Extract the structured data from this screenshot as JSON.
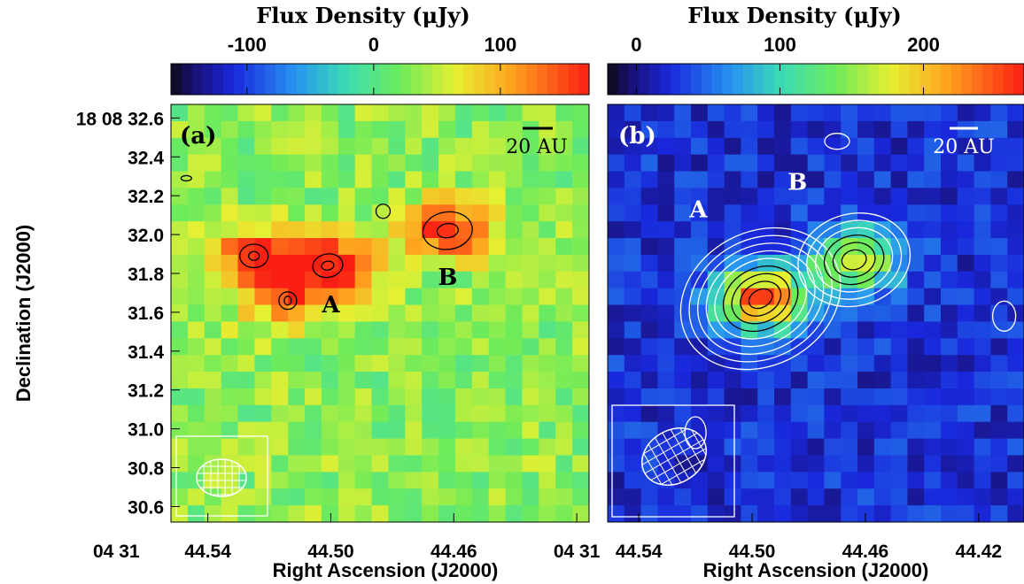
{
  "chart_data": [
    {
      "type": "heatmap",
      "panel_label": "(a)",
      "colorbar_title": "Flux Density (μJy)",
      "colorbar_range": [
        -160,
        170
      ],
      "colorbar_ticks": [
        {
          "value": -100,
          "label": "-100"
        },
        {
          "value": 0,
          "label": "0"
        },
        {
          "value": 100,
          "label": "100"
        }
      ],
      "xlabel": "Right Ascension (J2000)",
      "ylabel": "Declination (J2000)",
      "xlim": [
        "44.54",
        "44.42"
      ],
      "ylim": [
        30.52,
        32.67
      ],
      "x_ticks": [
        {
          "value": 44.54,
          "label": "44.54"
        },
        {
          "value": 44.5,
          "label": "44.50"
        },
        {
          "value": 44.46,
          "label": "44.46"
        },
        {
          "value": 44.42,
          "label": "04 31"
        }
      ],
      "x_prefix_label": "04 31",
      "y_ticks": [
        {
          "value": 32.6,
          "label": "18 08 32.6"
        },
        {
          "value": 32.4,
          "label": "32.4"
        },
        {
          "value": 32.2,
          "label": "32.2"
        },
        {
          "value": 32.0,
          "label": "32.0"
        },
        {
          "value": 31.8,
          "label": "31.8"
        },
        {
          "value": 31.6,
          "label": "31.6"
        },
        {
          "value": 31.4,
          "label": "31.4"
        },
        {
          "value": 31.2,
          "label": "31.2"
        },
        {
          "value": 31.0,
          "label": "31.0"
        },
        {
          "value": 30.8,
          "label": "30.8"
        },
        {
          "value": 30.6,
          "label": "30.6"
        }
      ],
      "scale_bar_label": "20 AU",
      "source_labels": [
        {
          "text": "A",
          "ra": 44.5,
          "dec": 31.6
        },
        {
          "text": "B",
          "ra": 44.462,
          "dec": 31.74
        }
      ],
      "sources": [
        {
          "ra": 44.525,
          "dec": 31.89,
          "peak": 150
        },
        {
          "ra": 44.501,
          "dec": 31.84,
          "peak": 165
        },
        {
          "ra": 44.462,
          "dec": 32.02,
          "peak": 155
        },
        {
          "ra": 44.514,
          "dec": 31.66,
          "peak": 120
        }
      ],
      "background_level": 30,
      "noise": 30
    },
    {
      "type": "heatmap",
      "panel_label": "(b)",
      "colorbar_title": "Flux Density (μJy)",
      "colorbar_range": [
        -20,
        270
      ],
      "colorbar_ticks": [
        {
          "value": 0,
          "label": "0"
        },
        {
          "value": 100,
          "label": "100"
        },
        {
          "value": 200,
          "label": "200"
        }
      ],
      "xlabel": "Right Ascension (J2000)",
      "xlim": [
        "44.55",
        "44.40"
      ],
      "x_ticks": [
        {
          "value": 44.54,
          "label": "44.54"
        },
        {
          "value": 44.5,
          "label": "44.50"
        },
        {
          "value": 44.46,
          "label": "44.46"
        },
        {
          "value": 44.42,
          "label": "44.42"
        }
      ],
      "scale_bar_label": "20 AU",
      "source_labels": [
        {
          "text": "A",
          "ra": 44.519,
          "dec": 32.09
        },
        {
          "text": "B",
          "ra": 44.484,
          "dec": 32.23
        }
      ],
      "sources": [
        {
          "ra": 44.497,
          "dec": 31.67,
          "peak": 260
        },
        {
          "ra": 44.464,
          "dec": 31.87,
          "peak": 190
        }
      ],
      "background_level": 25,
      "noise": 22
    }
  ]
}
